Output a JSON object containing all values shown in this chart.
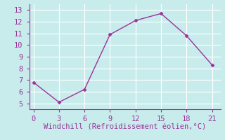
{
  "x": [
    0,
    3,
    6,
    9,
    12,
    15,
    18,
    21
  ],
  "y": [
    6.8,
    5.1,
    6.2,
    10.9,
    12.1,
    12.7,
    10.8,
    8.3
  ],
  "line_color": "#993399",
  "marker": "D",
  "marker_size": 2.5,
  "line_width": 1.0,
  "background_color": "#c8ecec",
  "grid_color": "#aadddd",
  "xlabel": "Windchill (Refroidissement éolien,°C)",
  "xlabel_color": "#993399",
  "tick_color": "#993399",
  "spine_color": "#993399",
  "xlim": [
    -0.5,
    22
  ],
  "ylim": [
    4.5,
    13.5
  ],
  "xticks": [
    0,
    3,
    6,
    9,
    12,
    15,
    18,
    21
  ],
  "yticks": [
    5,
    6,
    7,
    8,
    9,
    10,
    11,
    12,
    13
  ],
  "xlabel_fontsize": 7.5,
  "tick_fontsize": 7.5
}
